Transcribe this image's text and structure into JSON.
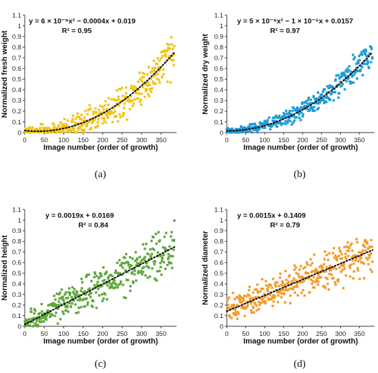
{
  "chart_data": [
    {
      "type": "scatter",
      "panel_label": "(a)",
      "xlabel": "Image number (order of growth)",
      "ylabel": "Normalized fresh weight",
      "xlim": [
        0,
        390
      ],
      "ylim": [
        0,
        1.1
      ],
      "xticks": [
        "0",
        "50",
        "100",
        "150",
        "200",
        "250",
        "300",
        "350"
      ],
      "yticks": [
        "0",
        "0.1",
        "0.2",
        "0.3",
        "0.4",
        "0.5",
        "0.6",
        "0.7",
        "0.8",
        "0.9",
        "1",
        "1.1"
      ],
      "equation": "y = 6 × 10⁻⁶x² − 0.0004x + 0.019",
      "r2": "R² = 0.95",
      "trend": {
        "kind": "quadratic",
        "coef": [
          6e-06,
          -0.0004,
          0.019
        ]
      },
      "color": "#F2C316",
      "n_points": 390,
      "noise": 0.03,
      "noise_growth": 0.12,
      "grid": false
    },
    {
      "type": "scatter",
      "panel_label": "(b)",
      "xlabel": "Image number (order of growth)",
      "ylabel": "Normalized dry weight",
      "xlim": [
        0,
        390
      ],
      "ylim": [
        0,
        1.1
      ],
      "xticks": [
        "0",
        "50",
        "100",
        "150",
        "200",
        "250",
        "300",
        "350"
      ],
      "yticks": [
        "0",
        "0.1",
        "0.2",
        "0.3",
        "0.4",
        "0.5",
        "0.6",
        "0.7",
        "0.8",
        "0.9",
        "1",
        "1.1"
      ],
      "equation": "y = 5 × 10⁻⁶x² − 1 × 10⁻⁵x + 0.0157",
      "r2": "R² = 0.97",
      "trend": {
        "kind": "quadratic",
        "coef": [
          5e-06,
          -1e-05,
          0.0157
        ]
      },
      "color": "#1F9AD6",
      "n_points": 390,
      "noise": 0.02,
      "noise_growth": 0.08,
      "grid": false
    },
    {
      "type": "scatter",
      "panel_label": "(c)",
      "xlabel": "Image number (order of growth)",
      "ylabel": "Normalized height",
      "xlim": [
        0,
        390
      ],
      "ylim": [
        0,
        1.1
      ],
      "xticks": [
        "0",
        "50",
        "100",
        "150",
        "200",
        "250",
        "300",
        "350"
      ],
      "yticks": [
        "0",
        "0.1",
        "0.2",
        "0.3",
        "0.4",
        "0.5",
        "0.6",
        "0.7",
        "0.8",
        "0.9",
        "1",
        "1.1"
      ],
      "equation": "y = 0.0019x + 0.0169",
      "r2": "R² = 0.84",
      "trend": {
        "kind": "linear",
        "coef": [
          0,
          0.0019,
          0.0169
        ]
      },
      "color": "#5FA83A",
      "n_points": 390,
      "noise": 0.07,
      "noise_growth": 0.1,
      "grid": false
    },
    {
      "type": "scatter",
      "panel_label": "(d)",
      "xlabel": "Image number (order of growth)",
      "ylabel": "Normalized diameter",
      "xlim": [
        0,
        390
      ],
      "ylim": [
        0,
        1.1
      ],
      "xticks": [
        "0",
        "50",
        "100",
        "150",
        "200",
        "250",
        "300",
        "350"
      ],
      "yticks": [
        "0",
        "0.1",
        "0.2",
        "0.3",
        "0.4",
        "0.5",
        "0.6",
        "0.7",
        "0.8",
        "0.9",
        "1",
        "1.1"
      ],
      "equation": "y = 0.0015x + 0.1409",
      "r2": "R² = 0.79",
      "trend": {
        "kind": "linear",
        "coef": [
          0,
          0.0015,
          0.1409
        ]
      },
      "color": "#F39A2B",
      "n_points": 390,
      "noise": 0.08,
      "noise_growth": 0.06,
      "grid": false
    }
  ]
}
